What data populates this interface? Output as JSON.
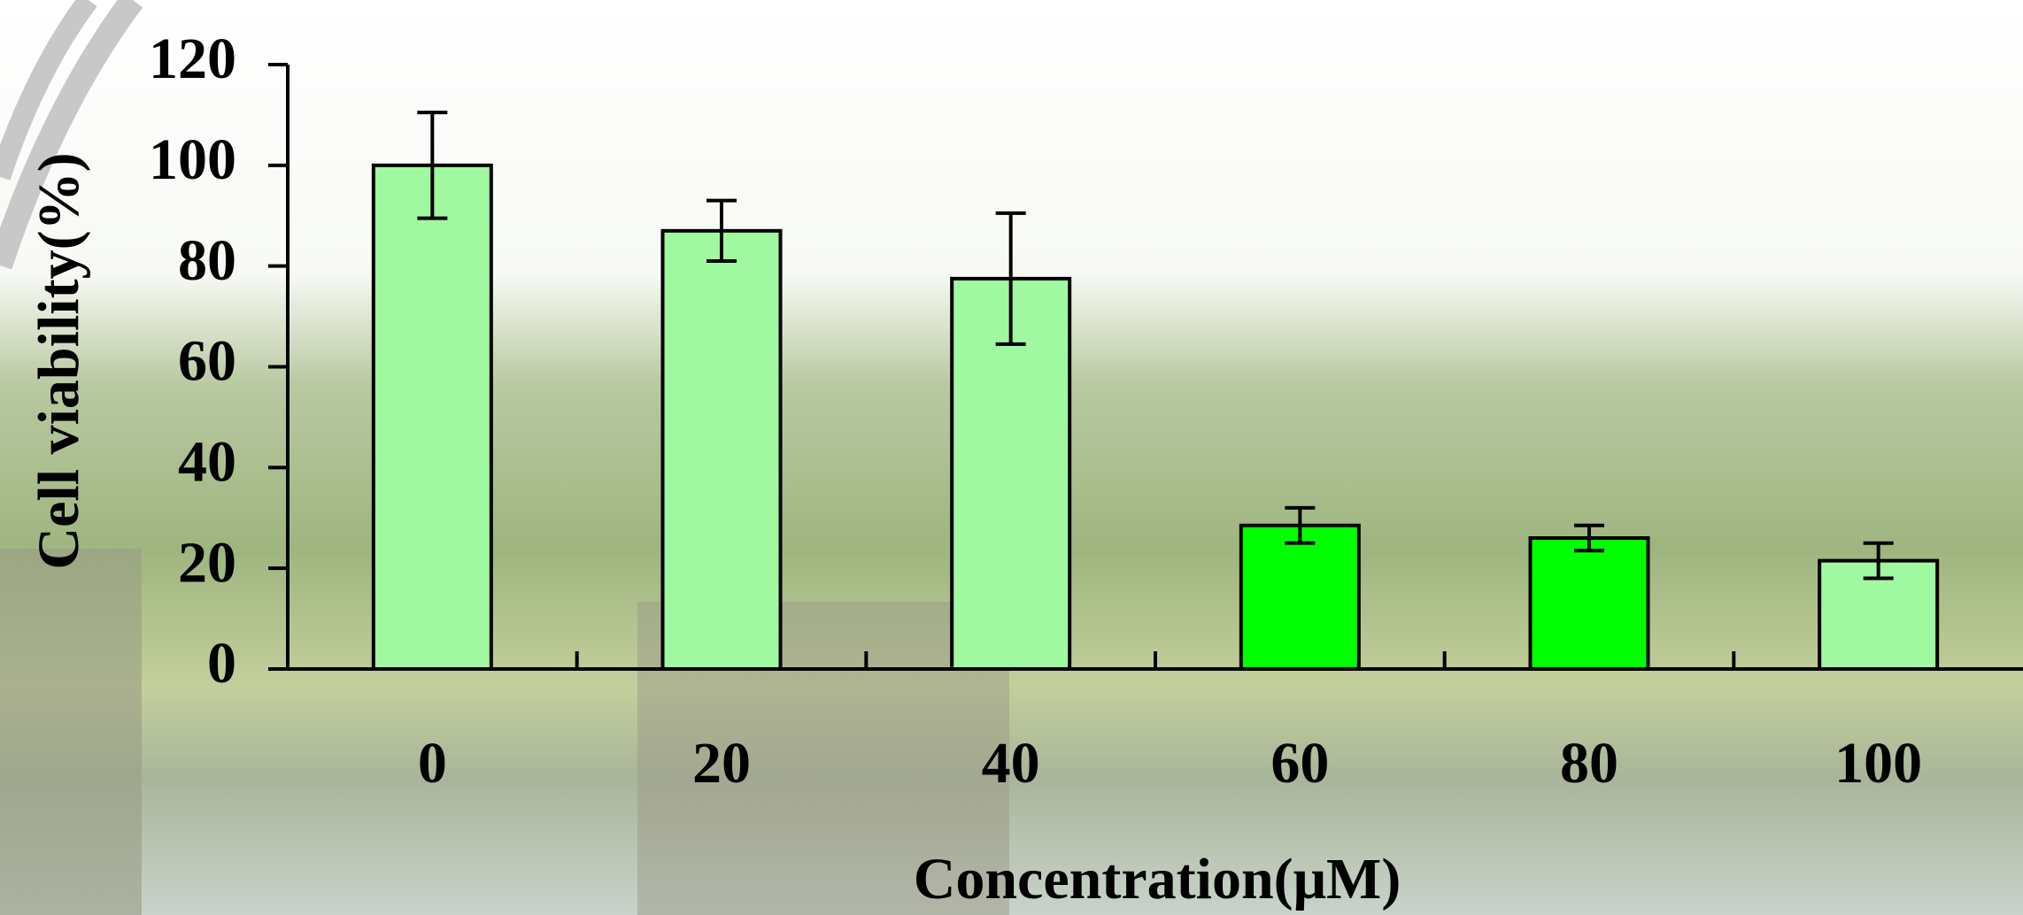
{
  "chart_data": {
    "type": "bar",
    "categories": [
      "0",
      "20",
      "40",
      "60",
      "80",
      "100"
    ],
    "values": [
      100,
      87,
      77.5,
      28.5,
      26,
      21.5
    ],
    "errors": [
      10.5,
      6,
      13,
      3.5,
      2.5,
      3.5
    ],
    "colors": [
      "#a0f8a0",
      "#a0f8a0",
      "#a0f8a0",
      "#00ff00",
      "#00ff00",
      "#a0f8a0"
    ],
    "ylim": [
      0,
      120
    ],
    "yticks": [
      0,
      20,
      40,
      60,
      80,
      100,
      120
    ],
    "ylabel": "Cell viability(%)",
    "xlabel": "Concentration(μM)"
  }
}
